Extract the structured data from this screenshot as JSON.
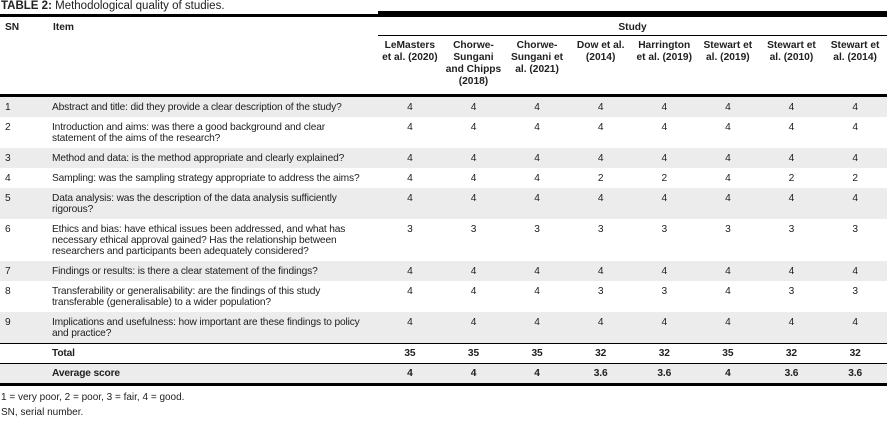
{
  "title": {
    "label": "TABLE 2:",
    "text": "Methodological quality of studies."
  },
  "table": {
    "col_sn": "SN",
    "col_item": "Item",
    "group_header": "Study",
    "studies": [
      "LeMasters et al. (2020)",
      "Chorwe-Sungani and Chipps (2018)",
      "Chorwe-Sungani et al. (2021)",
      "Dow et al. (2014)",
      "Harrington et al. (2019)",
      "Stewart et al. (2019)",
      "Stewart et al. (2010)",
      "Stewart et al. (2014)"
    ],
    "rows": [
      {
        "sn": "1",
        "item": "Abstract and title: did they provide a clear description of the study?",
        "scores": [
          4,
          4,
          4,
          4,
          4,
          4,
          4,
          4
        ]
      },
      {
        "sn": "2",
        "item": "Introduction and aims: was there a good background and clear statement of the aims of the research?",
        "scores": [
          4,
          4,
          4,
          4,
          4,
          4,
          4,
          4
        ]
      },
      {
        "sn": "3",
        "item": "Method and data: is the method appropriate and clearly explained?",
        "scores": [
          4,
          4,
          4,
          4,
          4,
          4,
          4,
          4
        ]
      },
      {
        "sn": "4",
        "item": "Sampling: was the sampling strategy appropriate to address the aims?",
        "scores": [
          4,
          4,
          4,
          2,
          2,
          4,
          2,
          2
        ]
      },
      {
        "sn": "5",
        "item": "Data analysis: was the description of the data analysis sufficiently rigorous?",
        "scores": [
          4,
          4,
          4,
          4,
          4,
          4,
          4,
          4
        ]
      },
      {
        "sn": "6",
        "item": "Ethics and bias: have ethical issues been addressed, and what has necessary ethical approval gained? Has the relationship between researchers and participants been adequately considered?",
        "scores": [
          3,
          3,
          3,
          3,
          3,
          3,
          3,
          3
        ]
      },
      {
        "sn": "7",
        "item": "Findings or results: is there a clear statement of the findings?",
        "scores": [
          4,
          4,
          4,
          4,
          4,
          4,
          4,
          4
        ]
      },
      {
        "sn": "8",
        "item": "Transferability or generalisability: are the findings of this study transferable (generalisable) to a wider population?",
        "scores": [
          4,
          4,
          4,
          3,
          3,
          4,
          3,
          3
        ]
      },
      {
        "sn": "9",
        "item": "Implications and usefulness: how important are these findings to policy and practice?",
        "scores": [
          4,
          4,
          4,
          4,
          4,
          4,
          4,
          4
        ]
      }
    ],
    "total": {
      "label": "Total",
      "values": [
        "35",
        "35",
        "35",
        "32",
        "32",
        "35",
        "32",
        "32"
      ]
    },
    "average": {
      "label": "Average score",
      "values": [
        "4",
        "4",
        "4",
        "3.6",
        "3.6",
        "4",
        "3.6",
        "3.6"
      ]
    }
  },
  "footnotes": [
    "1 = very poor, 2 = poor, 3 = fair, 4 = good.",
    "SN, serial number."
  ],
  "colors": {
    "row_shade": "#ececec",
    "rule": "#000000",
    "text": "#212121"
  }
}
